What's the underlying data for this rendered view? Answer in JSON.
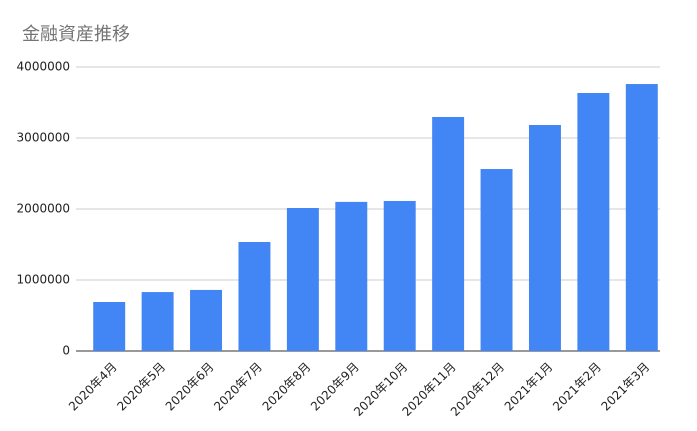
{
  "chart_data": {
    "type": "bar",
    "title": "金融資産推移",
    "categories": [
      "2020年4月",
      "2020年5月",
      "2020年6月",
      "2020年7月",
      "2020年8月",
      "2020年9月",
      "2020年10月",
      "2020年11月",
      "2020年12月",
      "2021年1月",
      "2021年2月",
      "2021年3月"
    ],
    "values": [
      690000,
      830000,
      860000,
      1535000,
      2014000,
      2100000,
      2113000,
      3296000,
      2563000,
      3183000,
      3634000,
      3760000
    ],
    "color": "#4285f4",
    "ylim": [
      0,
      4000000
    ],
    "yticks": [
      0,
      1000000,
      2000000,
      3000000,
      4000000
    ],
    "grid": true
  }
}
